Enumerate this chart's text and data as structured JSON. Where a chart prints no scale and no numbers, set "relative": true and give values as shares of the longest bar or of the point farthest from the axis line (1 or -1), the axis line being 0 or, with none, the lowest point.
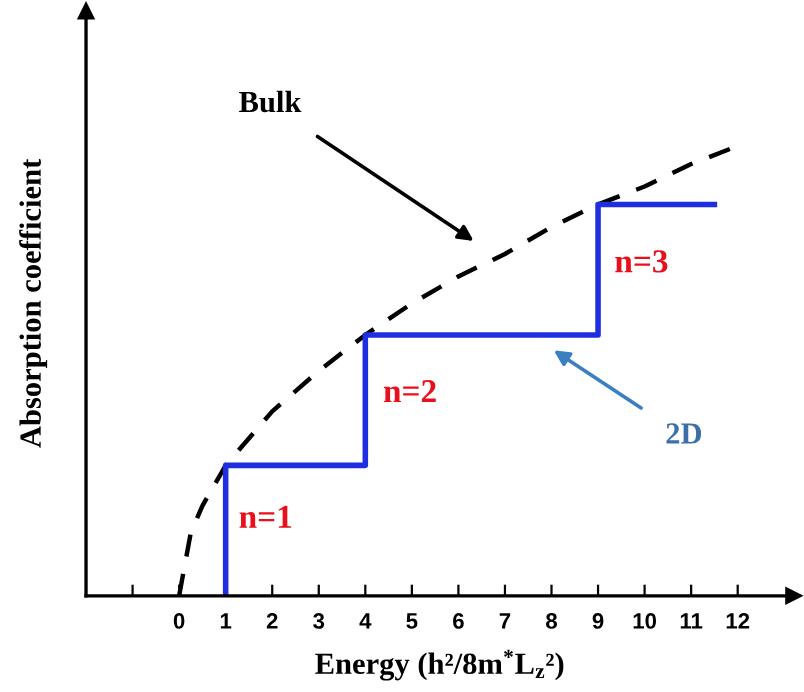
{
  "chart_data": {
    "type": "line",
    "relative": true,
    "xlabel": "Energy (h²/8m$^{*}$L$_{z}$²)",
    "ylabel": "Absorption coefficient",
    "xlim": [
      -2,
      13.2
    ],
    "xticks": [
      {
        "value": -1,
        "label": null
      },
      0,
      1,
      2,
      3,
      4,
      5,
      6,
      7,
      8,
      9,
      10,
      11,
      12
    ],
    "grid": false,
    "legend": false,
    "series": [
      {
        "color": "#000000",
        "line_style": "dashed",
        "x": [
          0,
          0.25,
          0.5,
          1,
          2,
          3,
          4,
          5,
          6,
          7,
          8,
          9,
          10,
          11,
          12
        ],
        "values": [
          0,
          0.14,
          0.2,
          0.29,
          0.41,
          0.5,
          0.58,
          0.65,
          0.71,
          0.76,
          0.82,
          0.87,
          0.91,
          0.96,
          1
        ]
      },
      {
        "color": "#1f2fe0",
        "line_style": "solid",
        "x": [
          1,
          1,
          4,
          4,
          9,
          9,
          11.5
        ],
        "values": [
          0,
          0.29,
          0.29,
          0.58,
          0.58,
          0.87,
          0.87
        ]
      }
    ],
    "annotations": [
      "Bulk",
      "2D",
      "n=1",
      "n=2",
      "n=3"
    ]
  }
}
